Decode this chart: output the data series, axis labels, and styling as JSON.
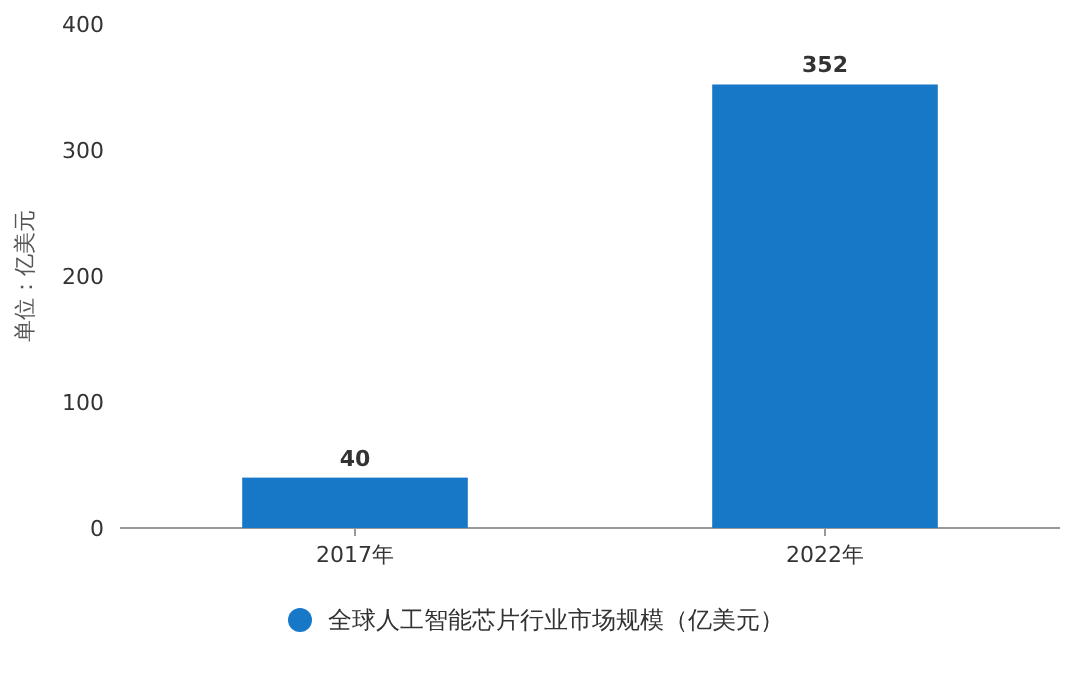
{
  "chart_data": {
    "type": "bar",
    "ylabel": "单位：亿美元",
    "categories": [
      "2017年",
      "2022年"
    ],
    "series": [
      {
        "name": "全球人工智能芯片行业市场规模（亿美元）",
        "color": "#1878c8",
        "values": [
          40,
          352
        ]
      }
    ],
    "ylim": [
      0,
      400
    ],
    "yticks": [
      0,
      100,
      200,
      300,
      400
    ],
    "data_labels": true,
    "legend": "bottom",
    "grid": false
  }
}
